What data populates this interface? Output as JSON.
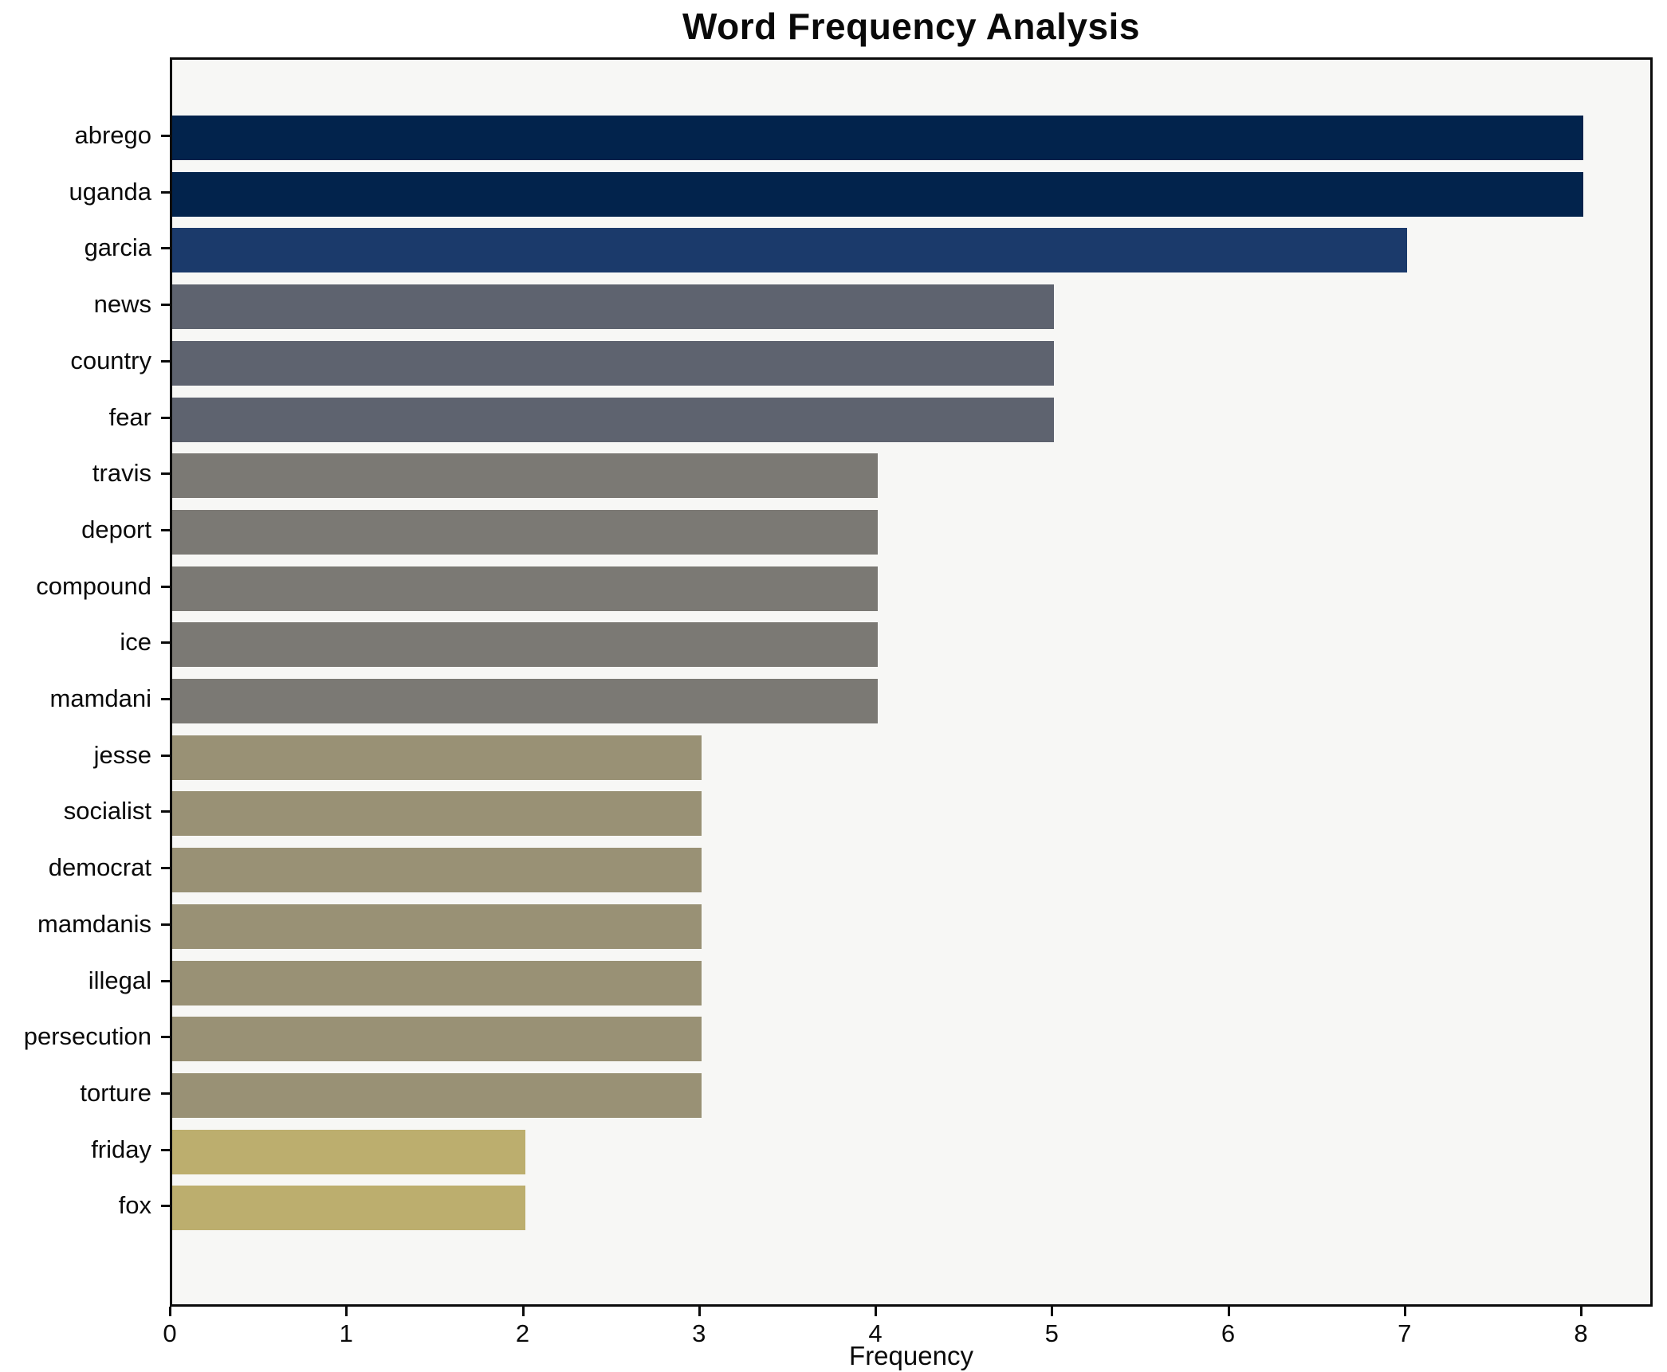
{
  "chart_data": {
    "type": "bar",
    "orientation": "horizontal",
    "title": "Word Frequency Analysis",
    "xlabel": "Frequency",
    "ylabel": "",
    "categories": [
      "abrego",
      "uganda",
      "garcia",
      "news",
      "country",
      "fear",
      "travis",
      "deport",
      "compound",
      "ice",
      "mamdani",
      "jesse",
      "socialist",
      "democrat",
      "mamdanis",
      "illegal",
      "persecution",
      "torture",
      "friday",
      "fox"
    ],
    "values": [
      8,
      8,
      7,
      5,
      5,
      5,
      4,
      4,
      4,
      4,
      4,
      3,
      3,
      3,
      3,
      3,
      3,
      3,
      2,
      2
    ],
    "bar_colors": [
      "#02234c",
      "#02234c",
      "#1b3a6b",
      "#5e636f",
      "#5e636f",
      "#5e636f",
      "#7b7974",
      "#7b7974",
      "#7b7974",
      "#7b7974",
      "#7b7974",
      "#999175",
      "#999175",
      "#999175",
      "#999175",
      "#999175",
      "#999175",
      "#999175",
      "#bcae6e",
      "#bcae6e"
    ],
    "xticks": [
      0,
      1,
      2,
      3,
      4,
      5,
      6,
      7,
      8
    ],
    "xlim": [
      0,
      8.41
    ],
    "grid": false,
    "legend": "none",
    "plot_background": "#f7f7f5",
    "frame_color": "#0b0b0b"
  }
}
